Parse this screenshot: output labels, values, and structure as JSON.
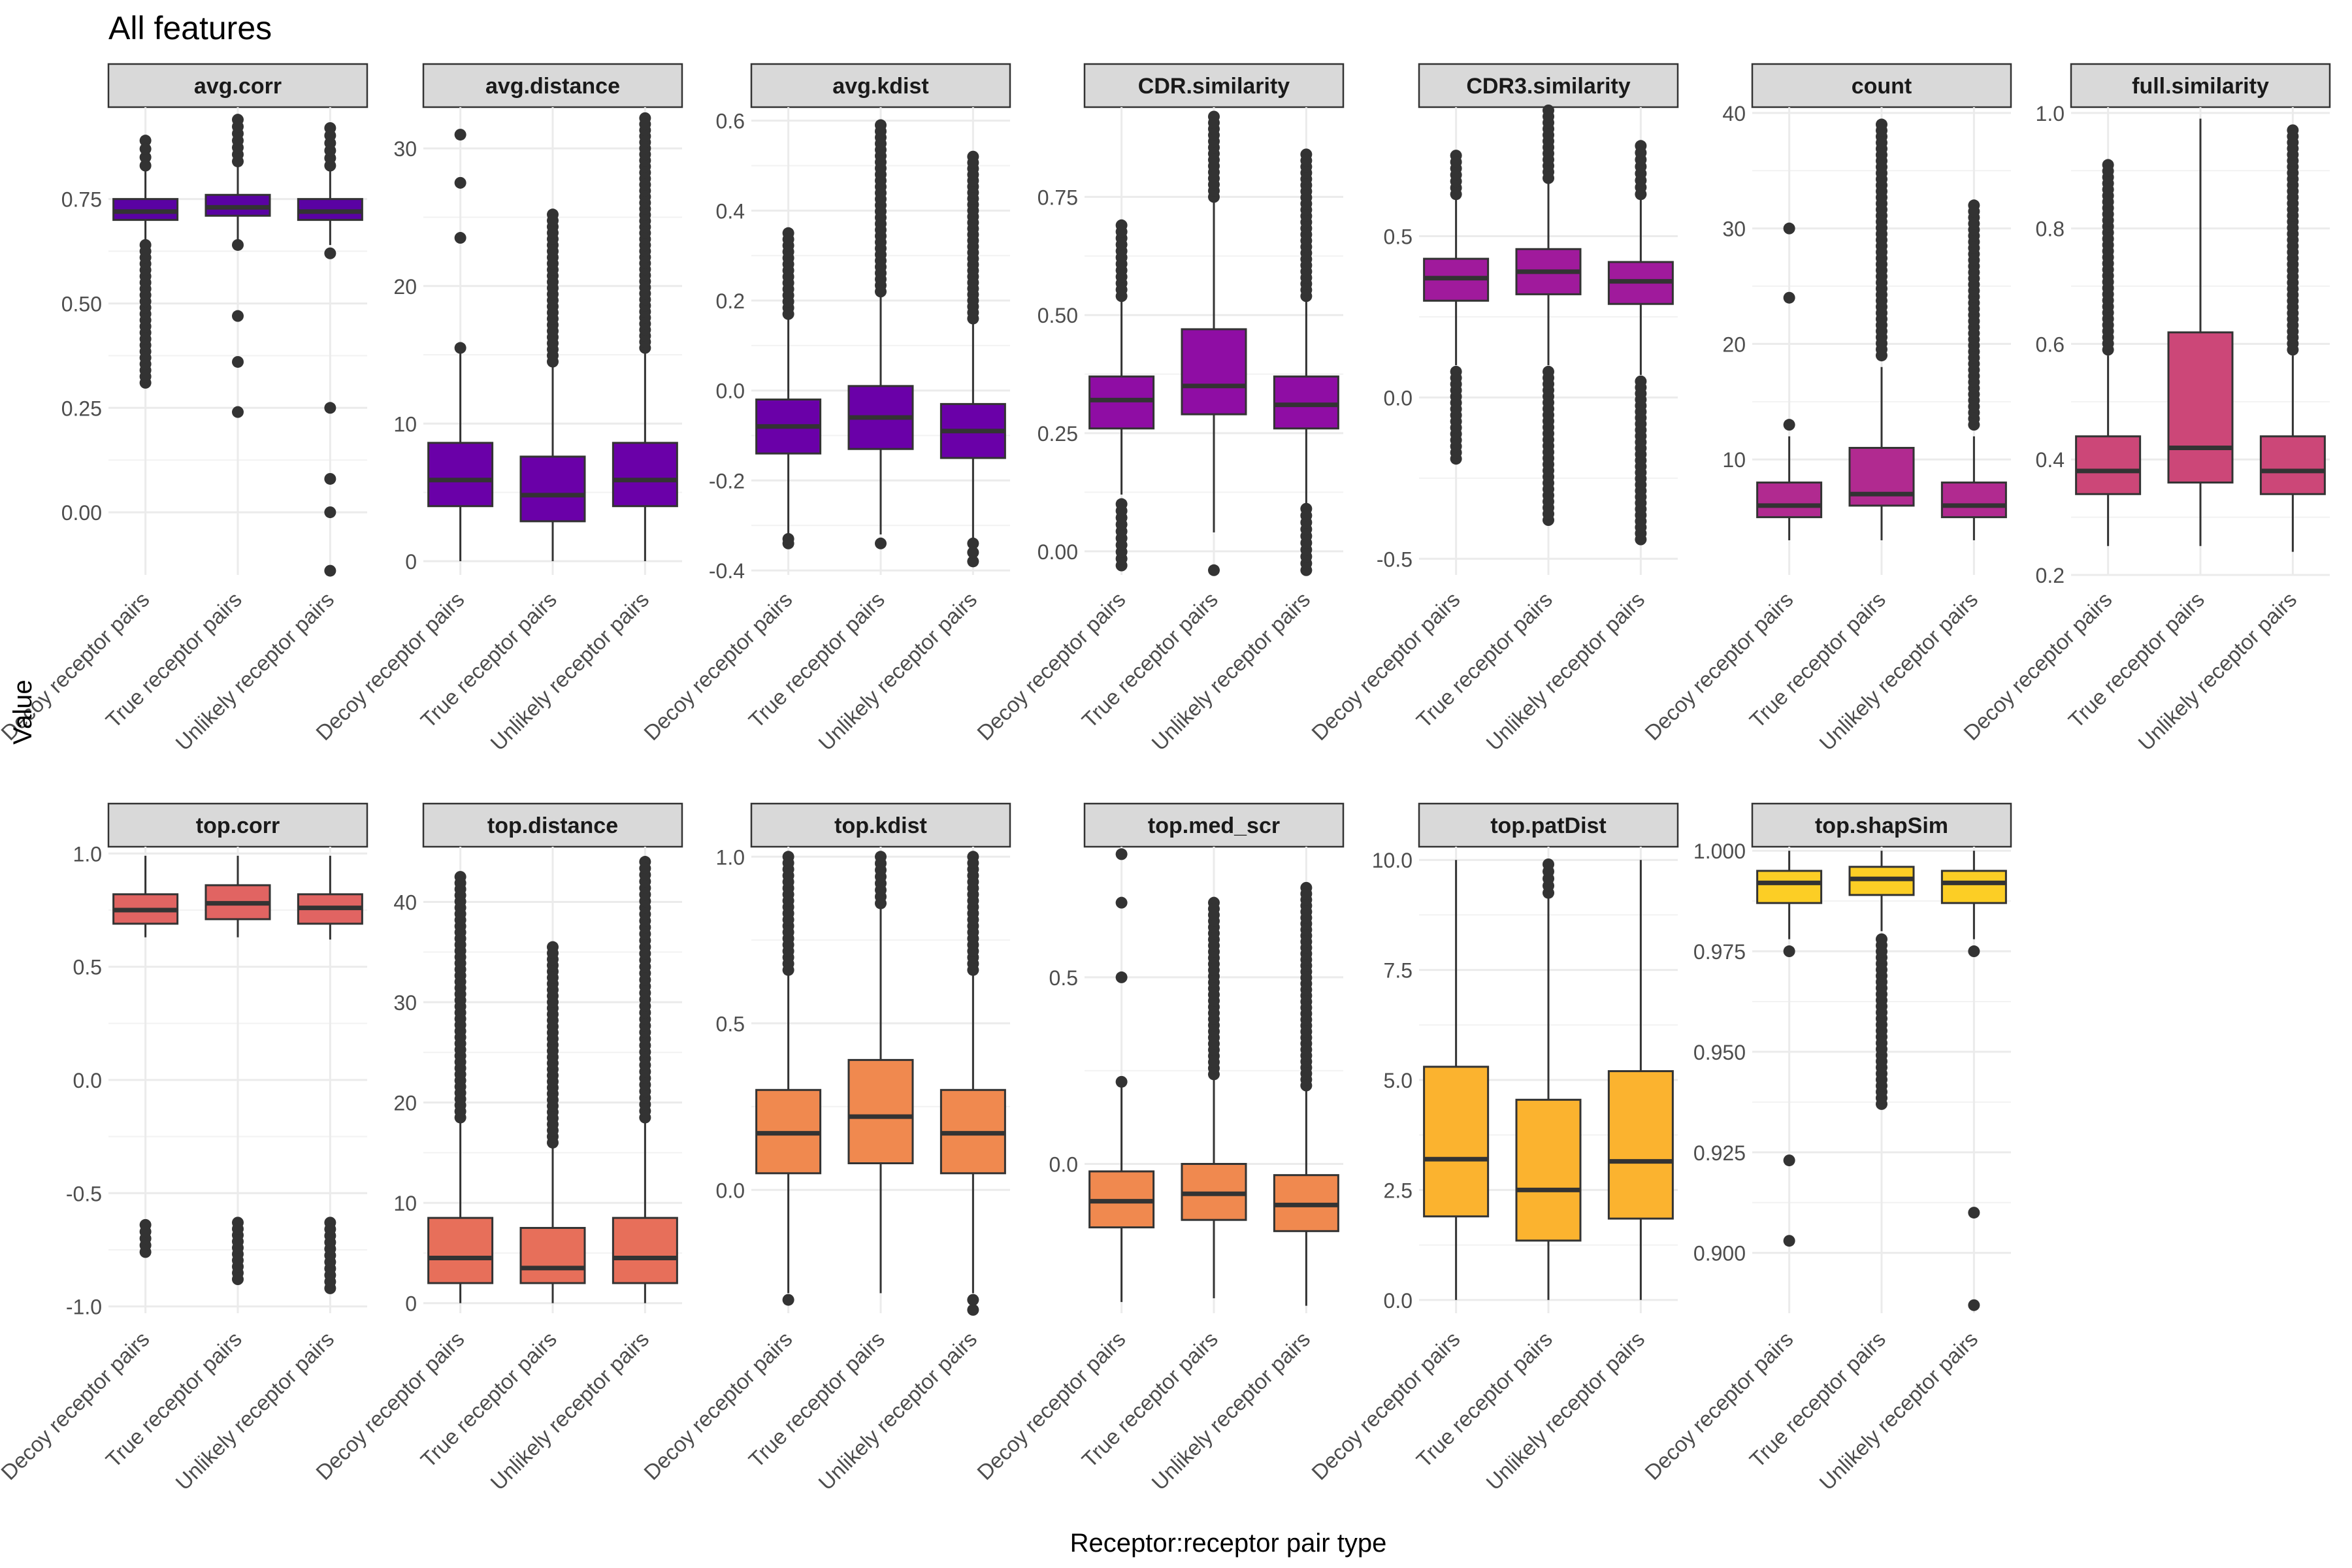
{
  "title": "All features",
  "xlabel": "Receptor:receptor pair type",
  "ylabel": "Value",
  "chart_data": {
    "type": "boxplot",
    "title": "All features",
    "xlabel": "Receptor:receptor pair type",
    "ylabel": "Value",
    "categories": [
      "Decoy receptor pairs",
      "True receptor pairs",
      "Unlikely receptor pairs"
    ],
    "grid": true,
    "legend": "none",
    "panels": [
      {
        "name": "avg.corr",
        "color": "#5a02a3",
        "ylim": [
          -0.15,
          0.97
        ],
        "ticks": [
          0.0,
          0.25,
          0.5,
          0.75
        ],
        "tick_labels": [
          "0.00",
          "0.25",
          "0.50",
          "0.75"
        ],
        "boxes": [
          {
            "min": 0.63,
            "q1": 0.7,
            "median": 0.72,
            "q3": 0.75,
            "max": 0.82,
            "out_low": [
              0.31,
              0.64
            ],
            "out_high": [
              0.83,
              0.89
            ]
          },
          {
            "min": 0.65,
            "q1": 0.71,
            "median": 0.73,
            "q3": 0.76,
            "max": 0.83,
            "out_low": [
              0.24,
              0.36,
              0.47,
              0.64
            ],
            "out_high": [
              0.84,
              0.94
            ]
          },
          {
            "min": 0.64,
            "q1": 0.7,
            "median": 0.72,
            "q3": 0.75,
            "max": 0.82,
            "out_low": [
              -0.14,
              0.0,
              0.08,
              0.25,
              0.62
            ],
            "out_high": [
              0.83,
              0.92
            ]
          }
        ]
      },
      {
        "name": "avg.distance",
        "color": "#6a00a8",
        "ylim": [
          -1.0,
          33.0
        ],
        "ticks": [
          0,
          10,
          20,
          30
        ],
        "tick_labels": [
          "0",
          "10",
          "20",
          "30"
        ],
        "boxes": [
          {
            "min": 0.0,
            "q1": 4.0,
            "median": 5.9,
            "q3": 8.6,
            "max": 15.3,
            "out_low": [],
            "out_high": [
              15.5,
              23.5,
              27.5,
              31.0
            ]
          },
          {
            "min": 0.0,
            "q1": 2.9,
            "median": 4.8,
            "q3": 7.6,
            "max": 14.2,
            "out_low": [],
            "out_high": [
              14.5,
              25.2
            ]
          },
          {
            "min": 0.0,
            "q1": 4.0,
            "median": 5.9,
            "q3": 8.6,
            "max": 15.3,
            "out_low": [],
            "out_high": [
              15.5,
              32.2
            ]
          }
        ]
      },
      {
        "name": "avg.kdist",
        "color": "#6a00a8",
        "ylim": [
          -0.41,
          0.63
        ],
        "ticks": [
          -0.4,
          -0.2,
          0.0,
          0.2,
          0.4,
          0.6
        ],
        "tick_labels": [
          "-0.4",
          "-0.2",
          "0.0",
          "0.2",
          "0.4",
          "0.6"
        ],
        "boxes": [
          {
            "min": -0.32,
            "q1": -0.14,
            "median": -0.08,
            "q3": -0.02,
            "max": 0.16,
            "out_low": [
              -0.34,
              -0.33
            ],
            "out_high": [
              0.17,
              0.35
            ]
          },
          {
            "min": -0.32,
            "q1": -0.13,
            "median": -0.06,
            "q3": 0.01,
            "max": 0.21,
            "out_low": [
              -0.34
            ],
            "out_high": [
              0.22,
              0.59
            ]
          },
          {
            "min": -0.33,
            "q1": -0.15,
            "median": -0.09,
            "q3": -0.03,
            "max": 0.15,
            "out_low": [
              -0.34,
              -0.38
            ],
            "out_high": [
              0.16,
              0.52
            ]
          }
        ]
      },
      {
        "name": "CDR.similarity",
        "color": "#8f0da4",
        "ylim": [
          -0.05,
          0.94
        ],
        "ticks": [
          0.0,
          0.25,
          0.5,
          0.75
        ],
        "tick_labels": [
          "0.00",
          "0.25",
          "0.50",
          "0.75"
        ],
        "boxes": [
          {
            "min": 0.12,
            "q1": 0.26,
            "median": 0.32,
            "q3": 0.37,
            "max": 0.53,
            "out_low": [
              -0.03,
              0.1
            ],
            "out_high": [
              0.54,
              0.69
            ]
          },
          {
            "min": 0.04,
            "q1": 0.29,
            "median": 0.35,
            "q3": 0.47,
            "max": 0.74,
            "out_low": [
              -0.04
            ],
            "out_high": [
              0.75,
              0.92
            ]
          },
          {
            "min": 0.1,
            "q1": 0.26,
            "median": 0.31,
            "q3": 0.37,
            "max": 0.53,
            "out_low": [
              -0.04,
              0.09
            ],
            "out_high": [
              0.54,
              0.84
            ]
          }
        ]
      },
      {
        "name": "CDR3.similarity",
        "color": "#a01a9c",
        "ylim": [
          -0.55,
          0.9
        ],
        "ticks": [
          -0.5,
          0.0,
          0.5
        ],
        "tick_labels": [
          "-0.5",
          "0.0",
          "0.5"
        ],
        "boxes": [
          {
            "min": 0.1,
            "q1": 0.3,
            "median": 0.37,
            "q3": 0.43,
            "max": 0.62,
            "out_low": [
              -0.19,
              0.08
            ],
            "out_high": [
              0.63,
              0.75
            ]
          },
          {
            "min": 0.1,
            "q1": 0.32,
            "median": 0.39,
            "q3": 0.46,
            "max": 0.67,
            "out_low": [
              -0.38,
              0.08
            ],
            "out_high": [
              0.68,
              0.89
            ]
          },
          {
            "min": 0.07,
            "q1": 0.29,
            "median": 0.36,
            "q3": 0.42,
            "max": 0.62,
            "out_low": [
              -0.44,
              0.05
            ],
            "out_high": [
              0.63,
              0.78
            ]
          }
        ]
      },
      {
        "name": "count",
        "color": "#b12a90",
        "ylim": [
          0.0,
          40.5
        ],
        "ticks": [
          10,
          20,
          30,
          40
        ],
        "tick_labels": [
          "10",
          "20",
          "30",
          "40"
        ],
        "boxes": [
          {
            "min": 3,
            "q1": 5,
            "median": 6,
            "q3": 8,
            "max": 12,
            "out_low": [],
            "out_high": [
              13,
              24,
              30
            ]
          },
          {
            "min": 3,
            "q1": 6,
            "median": 7,
            "q3": 11,
            "max": 18,
            "out_low": [],
            "out_high": [
              19,
              39
            ]
          },
          {
            "min": 3,
            "q1": 5,
            "median": 6,
            "q3": 8,
            "max": 12,
            "out_low": [],
            "out_high": [
              13,
              32
            ]
          }
        ]
      },
      {
        "name": "full.similarity",
        "color": "#cc4778",
        "ylim": [
          0.2,
          1.01
        ],
        "ticks": [
          0.2,
          0.4,
          0.6,
          0.8,
          1.0
        ],
        "tick_labels": [
          "0.2",
          "0.4",
          "0.6",
          "0.8",
          "1.0"
        ],
        "boxes": [
          {
            "min": 0.25,
            "q1": 0.34,
            "median": 0.38,
            "q3": 0.44,
            "max": 0.58,
            "out_low": [],
            "out_high": [
              0.59,
              0.91
            ]
          },
          {
            "min": 0.25,
            "q1": 0.36,
            "median": 0.42,
            "q3": 0.62,
            "max": 0.99,
            "out_low": [],
            "out_high": []
          },
          {
            "min": 0.24,
            "q1": 0.34,
            "median": 0.38,
            "q3": 0.44,
            "max": 0.58,
            "out_low": [],
            "out_high": [
              0.59,
              0.97
            ]
          }
        ]
      },
      {
        "name": "top.corr",
        "color": "#e16462",
        "ylim": [
          -1.03,
          1.03
        ],
        "ticks": [
          -1.0,
          -0.5,
          0.0,
          0.5,
          1.0
        ],
        "tick_labels": [
          "-1.0",
          "-0.5",
          "0.0",
          "0.5",
          "1.0"
        ],
        "boxes": [
          {
            "min": 0.63,
            "q1": 0.69,
            "median": 0.75,
            "q3": 0.82,
            "max": 0.99,
            "out_low": [
              -0.64,
              -0.76
            ],
            "out_high": []
          },
          {
            "min": 0.63,
            "q1": 0.71,
            "median": 0.78,
            "q3": 0.86,
            "max": 0.99,
            "out_low": [
              -0.63,
              -0.88
            ],
            "out_high": []
          },
          {
            "min": 0.62,
            "q1": 0.69,
            "median": 0.76,
            "q3": 0.82,
            "max": 0.99,
            "out_low": [
              -0.63,
              -0.92
            ],
            "out_high": []
          }
        ]
      },
      {
        "name": "top.distance",
        "color": "#e76f5a",
        "ylim": [
          -1.0,
          45.5
        ],
        "ticks": [
          0,
          10,
          20,
          30,
          40
        ],
        "tick_labels": [
          "0",
          "10",
          "20",
          "30",
          "40"
        ],
        "boxes": [
          {
            "min": 0.0,
            "q1": 2.0,
            "median": 4.5,
            "q3": 8.5,
            "max": 18.0,
            "out_low": [],
            "out_high": [
              18.5,
              42.5
            ]
          },
          {
            "min": 0.0,
            "q1": 2.0,
            "median": 3.5,
            "q3": 7.5,
            "max": 15.5,
            "out_low": [],
            "out_high": [
              16.0,
              35.5
            ]
          },
          {
            "min": 0.0,
            "q1": 2.0,
            "median": 4.5,
            "q3": 8.5,
            "max": 18.0,
            "out_low": [],
            "out_high": [
              18.5,
              44.0
            ]
          }
        ]
      },
      {
        "name": "top.kdist",
        "color": "#f0894f",
        "ylim": [
          -0.37,
          1.03
        ],
        "ticks": [
          0.0,
          0.5,
          1.0
        ],
        "tick_labels": [
          "0.0",
          "0.5",
          "1.0"
        ],
        "boxes": [
          {
            "min": -0.31,
            "q1": 0.05,
            "median": 0.17,
            "q3": 0.3,
            "max": 0.65,
            "out_low": [
              -0.33
            ],
            "out_high": [
              0.66,
              1.0
            ]
          },
          {
            "min": -0.31,
            "q1": 0.08,
            "median": 0.22,
            "q3": 0.39,
            "max": 0.85,
            "out_low": [],
            "out_high": [
              0.86,
              1.0
            ]
          },
          {
            "min": -0.31,
            "q1": 0.05,
            "median": 0.17,
            "q3": 0.3,
            "max": 0.65,
            "out_low": [
              -0.33,
              -0.36
            ],
            "out_high": [
              0.66,
              1.0
            ]
          }
        ]
      },
      {
        "name": "top.med_scr",
        "color": "#f0894f",
        "ylim": [
          -0.4,
          0.85
        ],
        "ticks": [
          0.0,
          0.5
        ],
        "tick_labels": [
          "0.0",
          "0.5"
        ],
        "boxes": [
          {
            "min": -0.37,
            "q1": -0.17,
            "median": -0.1,
            "q3": -0.02,
            "max": 0.21,
            "out_low": [],
            "out_high": [
              0.22,
              0.5,
              0.7,
              0.83
            ]
          },
          {
            "min": -0.36,
            "q1": -0.15,
            "median": -0.08,
            "q3": 0.0,
            "max": 0.23,
            "out_low": [],
            "out_high": [
              0.24,
              0.7
            ]
          },
          {
            "min": -0.38,
            "q1": -0.18,
            "median": -0.11,
            "q3": -0.03,
            "max": 0.2,
            "out_low": [],
            "out_high": [
              0.21,
              0.74
            ]
          }
        ]
      },
      {
        "name": "top.patDist",
        "color": "#fbb32f",
        "ylim": [
          -0.3,
          10.3
        ],
        "ticks": [
          0.0,
          2.5,
          5.0,
          7.5,
          10.0
        ],
        "tick_labels": [
          "0.0",
          "2.5",
          "5.0",
          "7.5",
          "10.0"
        ],
        "boxes": [
          {
            "min": 0.0,
            "q1": 1.9,
            "median": 3.2,
            "q3": 5.3,
            "max": 10.0,
            "out_low": [],
            "out_high": []
          },
          {
            "min": 0.0,
            "q1": 1.35,
            "median": 2.5,
            "q3": 4.55,
            "max": 9.2,
            "out_low": [],
            "out_high": [
              9.25,
              9.9
            ]
          },
          {
            "min": 0.0,
            "q1": 1.85,
            "median": 3.15,
            "q3": 5.2,
            "max": 10.0,
            "out_low": [],
            "out_high": []
          }
        ]
      },
      {
        "name": "top.shapSim",
        "color": "#fcce25",
        "ylim": [
          0.885,
          1.001
        ],
        "ticks": [
          0.9,
          0.925,
          0.95,
          0.975,
          1.0
        ],
        "tick_labels": [
          "0.900",
          "0.925",
          "0.950",
          "0.975",
          "1.000"
        ],
        "boxes": [
          {
            "min": 0.978,
            "q1": 0.987,
            "median": 0.992,
            "q3": 0.995,
            "max": 1.0,
            "out_low": [
              0.903,
              0.923,
              0.975
            ],
            "out_high": []
          },
          {
            "min": 0.98,
            "q1": 0.989,
            "median": 0.993,
            "q3": 0.996,
            "max": 1.0,
            "out_low": [
              0.937,
              0.978
            ],
            "out_high": []
          },
          {
            "min": 0.978,
            "q1": 0.987,
            "median": 0.992,
            "q3": 0.995,
            "max": 1.0,
            "out_low": [
              0.887,
              0.91,
              0.975
            ],
            "out_high": []
          }
        ]
      }
    ]
  }
}
